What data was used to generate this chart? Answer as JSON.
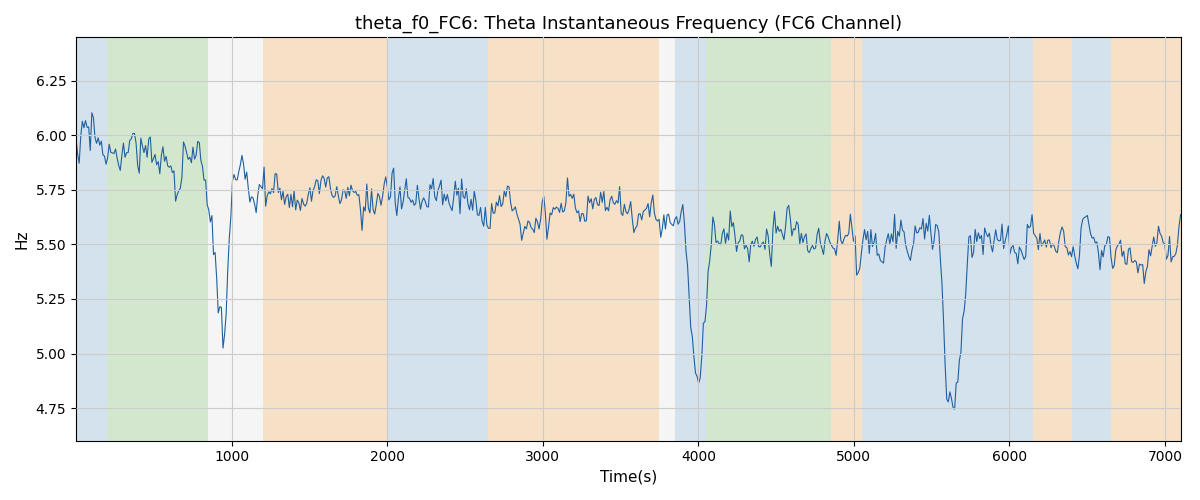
{
  "title": "theta_f0_FC6: Theta Instantaneous Frequency (FC6 Channel)",
  "xlabel": "Time(s)",
  "ylabel": "Hz",
  "xlim": [
    0,
    7100
  ],
  "ylim": [
    4.6,
    6.45
  ],
  "line_color": "#2060a0",
  "line_width": 0.8,
  "background_bands": [
    {
      "xmin": 0,
      "xmax": 200,
      "color": "#b8d4e8",
      "alpha": 0.55
    },
    {
      "xmin": 200,
      "xmax": 850,
      "color": "#b8ddb0",
      "alpha": 0.55
    },
    {
      "xmin": 1200,
      "xmax": 2000,
      "color": "#f8d0a0",
      "alpha": 0.55
    },
    {
      "xmin": 2000,
      "xmax": 2650,
      "color": "#b8d4e8",
      "alpha": 0.55
    },
    {
      "xmin": 2650,
      "xmax": 3750,
      "color": "#f8d0a0",
      "alpha": 0.55
    },
    {
      "xmin": 3850,
      "xmax": 4050,
      "color": "#b8d4e8",
      "alpha": 0.55
    },
    {
      "xmin": 4050,
      "xmax": 4850,
      "color": "#b8ddb0",
      "alpha": 0.55
    },
    {
      "xmin": 4850,
      "xmax": 5050,
      "color": "#f8d0a0",
      "alpha": 0.55
    },
    {
      "xmin": 5050,
      "xmax": 6150,
      "color": "#b8d4e8",
      "alpha": 0.55
    },
    {
      "xmin": 6150,
      "xmax": 6400,
      "color": "#f8d0a0",
      "alpha": 0.55
    },
    {
      "xmin": 6400,
      "xmax": 6650,
      "color": "#b8d4e8",
      "alpha": 0.55
    },
    {
      "xmin": 6650,
      "xmax": 7200,
      "color": "#f8d0a0",
      "alpha": 0.55
    }
  ],
  "seed": 17,
  "yticks": [
    4.75,
    5.0,
    5.25,
    5.5,
    5.75,
    6.0,
    6.25
  ],
  "xticks": [
    1000,
    2000,
    3000,
    4000,
    5000,
    6000,
    7000
  ],
  "figsize": [
    12.0,
    5.0
  ],
  "dpi": 100,
  "n_points": 700
}
